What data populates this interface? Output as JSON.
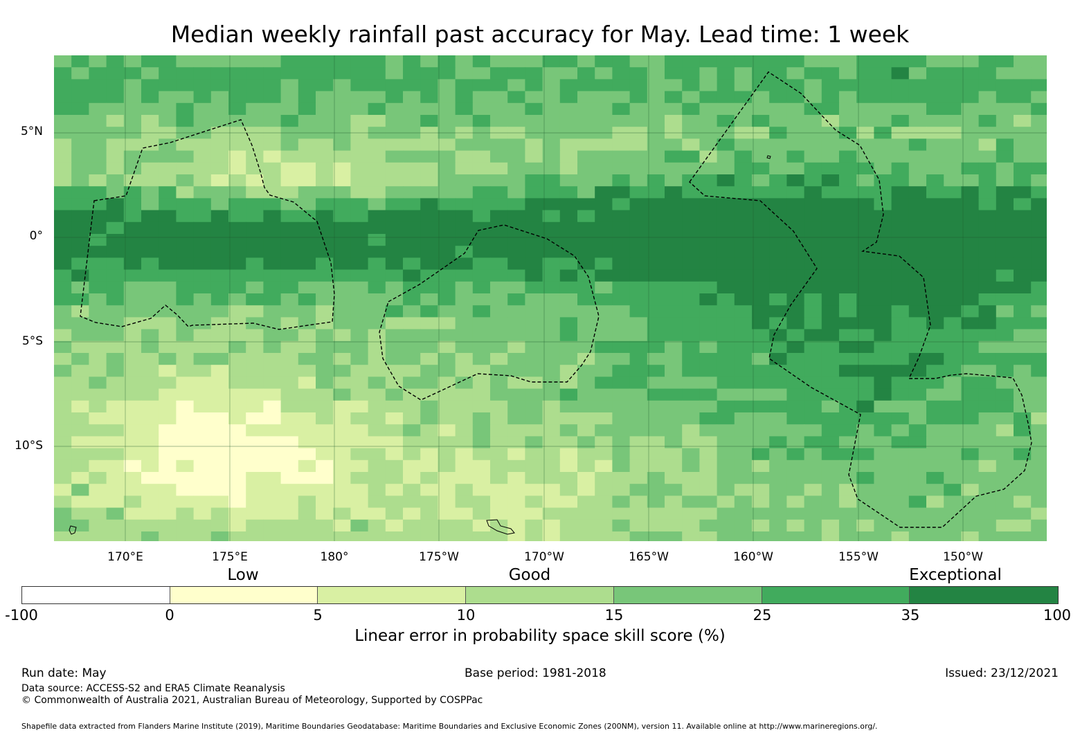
{
  "title": "Median weekly rainfall past accuracy for May. Lead time: 1 week",
  "map": {
    "lat_labels": [
      "5°N",
      "0°",
      "5°S",
      "10°S"
    ],
    "lon_labels": [
      "170°E",
      "175°E",
      "180°",
      "175°W",
      "170°W",
      "165°W",
      "160°W",
      "155°W",
      "150°W"
    ]
  },
  "legend": {
    "categories": [
      "Low",
      "Good",
      "Exceptional"
    ],
    "ticks": [
      "-100",
      "0",
      "5",
      "10",
      "15",
      "25",
      "35",
      "100"
    ],
    "colors": [
      "#ffffff",
      "#ffffcc",
      "#d9f0a3",
      "#addd8e",
      "#78c679",
      "#41ab5d",
      "#238443"
    ],
    "title": "Linear error in probability space skill score (%)"
  },
  "footer": {
    "run_date": "Run date: May",
    "base_period": "Base period: 1981-2018",
    "issued": "Issued: 23/12/2021",
    "data_source": "Data source: ACCESS-S2 and ERA5 Climate Reanalysis",
    "copyright": "© Commonwealth of Australia 2021, Australian Bureau of Meteorology, Supported by COSPPac",
    "shapefile": "Shapefile data extracted from Flanders Marine Institute (2019), Maritime Boundaries Geodatabase: Maritime Boundaries and Exclusive Economic Zones (200NM), version 11. Available online at http://www.marineregions.org/."
  }
}
